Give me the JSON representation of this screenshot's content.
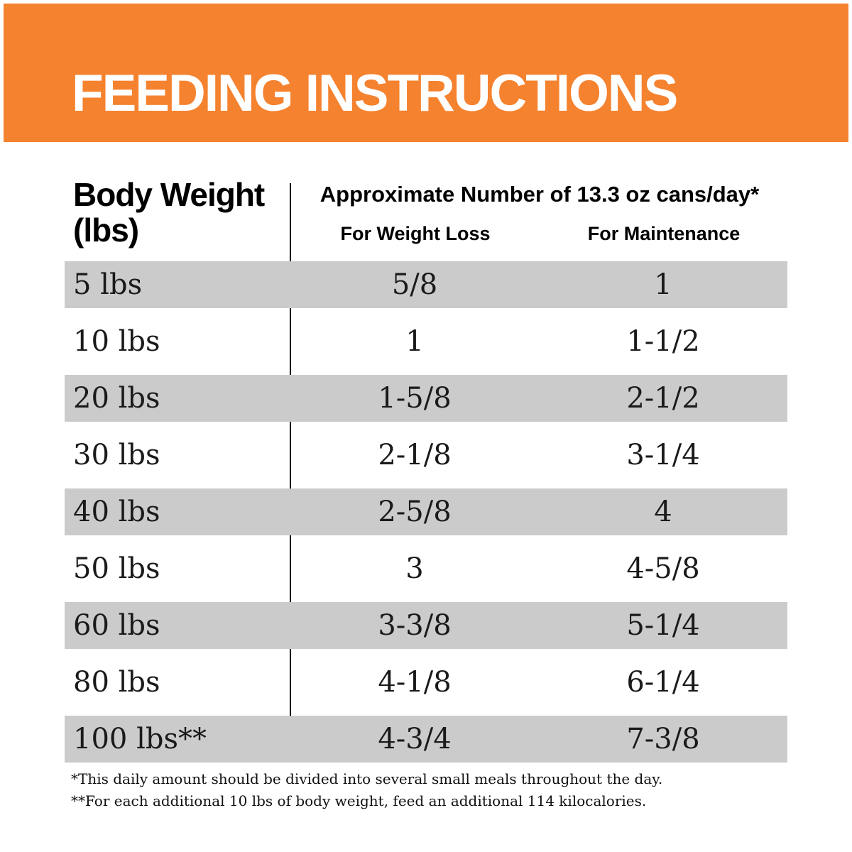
{
  "colors": {
    "banner_orange": "#F5822F",
    "stripe_gray": "#CBCBCB",
    "title_white": "#FFFFFF"
  },
  "header": {
    "title": "FEEDING INSTRUCTIONS"
  },
  "table": {
    "body_weight_header": {
      "line1": "Body Weight",
      "line2": "(lbs)"
    },
    "cans_header": "Approximate Number of 13.3 oz cans/day*",
    "columns": {
      "weight_loss": "For Weight Loss",
      "maintenance": "For Maintenance"
    },
    "rows": [
      {
        "weight": "5 lbs",
        "weight_loss": "5/8",
        "maintenance": "1"
      },
      {
        "weight": "10 lbs",
        "weight_loss": "1",
        "maintenance": "1-1/2"
      },
      {
        "weight": "20 lbs",
        "weight_loss": "1-5/8",
        "maintenance": "2-1/2"
      },
      {
        "weight": "30 lbs",
        "weight_loss": "2-1/8",
        "maintenance": "3-1/4"
      },
      {
        "weight": "40 lbs",
        "weight_loss": "2-5/8",
        "maintenance": "4"
      },
      {
        "weight": "50 lbs",
        "weight_loss": "3",
        "maintenance": "4-5/8"
      },
      {
        "weight": "60 lbs",
        "weight_loss": "3-3/8",
        "maintenance": "5-1/4"
      },
      {
        "weight": "80 lbs",
        "weight_loss": "4-1/8",
        "maintenance": "6-1/4"
      },
      {
        "weight": "100 lbs**",
        "weight_loss": "4-3/4",
        "maintenance": "7-3/8"
      }
    ]
  },
  "footnotes": {
    "daily_amount": "*This daily amount should be divided into several small meals throughout the day.",
    "additional_weight": "**For each additional 10 lbs of body weight, feed an additional 114 kilocalories."
  }
}
